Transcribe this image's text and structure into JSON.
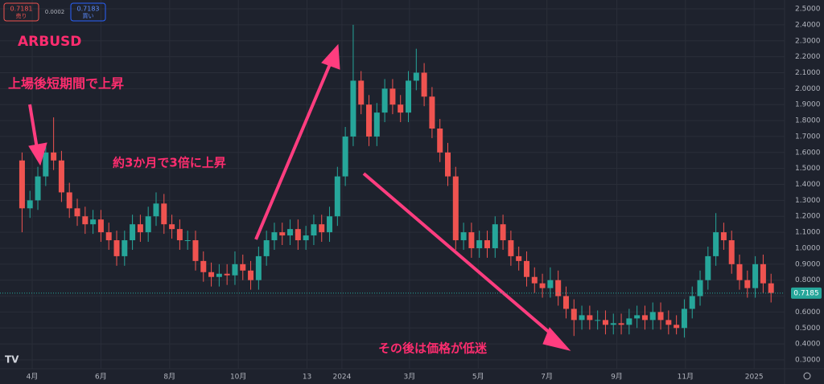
{
  "chart_data": {
    "type": "candlestick",
    "title": "ARBUSD",
    "annotations": [
      "上場後短期間で上昇",
      "約3か月で3倍に上昇",
      "その後は価格が低迷"
    ],
    "quote": {
      "sell": 0.7181,
      "sell_label": "売り",
      "spread": 0.0002,
      "buy": 0.7183,
      "buy_label": "買い"
    },
    "last_price": 0.7185,
    "up_color": "#26a69a",
    "down_color": "#ef5350",
    "x": [
      -9,
      -2,
      5,
      12,
      19,
      26,
      33,
      40,
      47,
      54,
      61,
      68,
      75,
      82,
      89,
      96,
      103,
      110,
      117,
      124,
      131,
      138,
      145,
      152,
      159,
      166,
      173,
      180,
      187,
      194,
      201,
      208,
      215,
      222,
      229,
      236,
      243,
      250,
      257,
      264,
      271,
      278,
      285,
      292,
      299,
      306,
      313,
      320,
      327,
      334,
      341,
      348,
      355,
      362,
      369,
      376,
      383,
      390,
      397,
      404,
      411,
      418,
      425,
      432,
      439,
      446,
      453,
      460,
      467,
      474,
      481,
      488,
      495,
      502,
      509,
      516,
      523,
      530,
      537,
      544,
      551,
      558,
      565,
      572,
      579,
      586,
      593,
      600,
      607,
      614,
      621,
      628,
      635,
      642,
      649,
      656
    ],
    "open": [
      1.55,
      1.25,
      1.3,
      1.45,
      1.6,
      1.55,
      1.35,
      1.25,
      1.2,
      1.15,
      1.18,
      1.1,
      1.05,
      0.95,
      1.05,
      1.15,
      1.1,
      1.2,
      1.28,
      1.15,
      1.12,
      1.05,
      1.05,
      0.92,
      0.85,
      0.82,
      0.84,
      0.83,
      0.9,
      0.86,
      0.8,
      0.95,
      1.05,
      1.1,
      1.08,
      1.12,
      1.05,
      1.08,
      1.15,
      1.1,
      1.2,
      1.45,
      1.7,
      2.05,
      1.9,
      1.7,
      1.85,
      2.0,
      1.9,
      1.85,
      2.05,
      2.1,
      1.95,
      1.75,
      1.6,
      1.45,
      1.05,
      1.1,
      1.0,
      1.05,
      1.0,
      1.15,
      1.05,
      0.95,
      0.92,
      0.82,
      0.78,
      0.75,
      0.8,
      0.7,
      0.62,
      0.55,
      0.58,
      0.55,
      0.55,
      0.52,
      0.53,
      0.52,
      0.56,
      0.58,
      0.55,
      0.6,
      0.55,
      0.52,
      0.5,
      0.62,
      0.7,
      0.8,
      0.95,
      1.1,
      1.05,
      0.9,
      0.8,
      0.75,
      0.9,
      0.78
    ],
    "high": [
      1.6,
      1.36,
      1.51,
      1.66,
      1.82,
      1.61,
      1.41,
      1.31,
      1.26,
      1.24,
      1.24,
      1.16,
      1.11,
      1.11,
      1.21,
      1.21,
      1.26,
      1.35,
      1.34,
      1.21,
      1.18,
      1.11,
      1.11,
      0.98,
      0.91,
      0.9,
      0.9,
      0.98,
      0.96,
      0.92,
      1.01,
      1.11,
      1.16,
      1.16,
      1.18,
      1.18,
      1.14,
      1.21,
      1.21,
      1.26,
      1.51,
      1.76,
      2.4,
      2.11,
      1.96,
      1.91,
      2.06,
      2.06,
      1.96,
      2.11,
      2.25,
      2.16,
      2.01,
      1.81,
      1.66,
      1.51,
      1.16,
      1.16,
      1.11,
      1.11,
      1.2,
      1.21,
      1.11,
      1.01,
      0.98,
      0.88,
      0.84,
      0.88,
      0.86,
      0.76,
      0.68,
      0.64,
      0.64,
      0.61,
      0.61,
      0.59,
      0.59,
      0.62,
      0.64,
      0.64,
      0.66,
      0.66,
      0.61,
      0.58,
      0.68,
      0.76,
      0.86,
      1.01,
      1.22,
      1.16,
      1.11,
      0.96,
      0.86,
      0.95,
      0.96,
      0.84
    ],
    "low": [
      1.1,
      1.19,
      1.24,
      1.39,
      1.49,
      1.29,
      1.19,
      1.14,
      1.09,
      1.09,
      1.04,
      0.99,
      0.89,
      0.89,
      0.99,
      1.04,
      1.04,
      1.14,
      1.09,
      1.06,
      0.99,
      0.99,
      0.86,
      0.79,
      0.76,
      0.76,
      0.77,
      0.77,
      0.8,
      0.74,
      0.74,
      0.89,
      0.99,
      1.02,
      1.02,
      0.99,
      0.99,
      1.02,
      1.04,
      1.04,
      1.14,
      1.39,
      1.64,
      1.84,
      1.64,
      1.64,
      1.79,
      1.84,
      1.79,
      1.79,
      1.99,
      1.89,
      1.69,
      1.54,
      1.39,
      0.99,
      0.99,
      0.94,
      0.94,
      0.94,
      0.94,
      0.99,
      0.89,
      0.86,
      0.76,
      0.72,
      0.69,
      0.69,
      0.64,
      0.56,
      0.45,
      0.49,
      0.49,
      0.49,
      0.46,
      0.46,
      0.46,
      0.46,
      0.5,
      0.49,
      0.49,
      0.49,
      0.46,
      0.46,
      0.44,
      0.56,
      0.64,
      0.74,
      0.89,
      0.99,
      0.84,
      0.74,
      0.69,
      0.69,
      0.72,
      0.66
    ],
    "close": [
      1.25,
      1.3,
      1.45,
      1.6,
      1.55,
      1.35,
      1.25,
      1.2,
      1.15,
      1.18,
      1.1,
      1.05,
      0.95,
      1.05,
      1.15,
      1.1,
      1.2,
      1.28,
      1.15,
      1.12,
      1.05,
      1.05,
      0.92,
      0.85,
      0.82,
      0.84,
      0.83,
      0.9,
      0.86,
      0.8,
      0.95,
      1.05,
      1.1,
      1.08,
      1.12,
      1.05,
      1.08,
      1.15,
      1.1,
      1.2,
      1.45,
      1.7,
      2.05,
      1.9,
      1.7,
      1.85,
      2.0,
      1.9,
      1.85,
      2.05,
      2.1,
      1.95,
      1.75,
      1.6,
      1.45,
      1.05,
      1.1,
      1.0,
      1.05,
      1.0,
      1.15,
      1.05,
      0.95,
      0.92,
      0.82,
      0.78,
      0.75,
      0.8,
      0.7,
      0.62,
      0.55,
      0.58,
      0.55,
      0.55,
      0.52,
      0.53,
      0.52,
      0.56,
      0.58,
      0.55,
      0.6,
      0.55,
      0.52,
      0.5,
      0.62,
      0.7,
      0.8,
      0.95,
      1.1,
      1.05,
      0.9,
      0.8,
      0.75,
      0.9,
      0.78,
      0.72
    ],
    "xlim": [
      -28.6,
      668
    ],
    "xticks": [
      {
        "value": 0,
        "label": "4月"
      },
      {
        "value": 61,
        "label": "6月"
      },
      {
        "value": 122,
        "label": "8月"
      },
      {
        "value": 183,
        "label": "10月"
      },
      {
        "value": 244,
        "label": "13"
      },
      {
        "value": 275,
        "label": "2024"
      },
      {
        "value": 335,
        "label": "3月"
      },
      {
        "value": 396,
        "label": "5月"
      },
      {
        "value": 457,
        "label": "7月"
      },
      {
        "value": 519,
        "label": "9月"
      },
      {
        "value": 580,
        "label": "11月"
      },
      {
        "value": 641,
        "label": "2025"
      }
    ],
    "ylim": [
      0.2447,
      2.5555
    ],
    "yticks": [
      {
        "value": 0.3,
        "label": "0.3000"
      },
      {
        "value": 0.4,
        "label": "0.4000"
      },
      {
        "value": 0.5,
        "label": "0.5000"
      },
      {
        "value": 0.6,
        "label": "0.6000"
      },
      {
        "value": 0.7,
        "label": "0.7000"
      },
      {
        "value": 0.8,
        "label": "0.8000"
      },
      {
        "value": 0.9,
        "label": "0.9000"
      },
      {
        "value": 1.0,
        "label": "1.0000"
      },
      {
        "value": 1.1,
        "label": "1.1000"
      },
      {
        "value": 1.2,
        "label": "1.2000"
      },
      {
        "value": 1.3,
        "label": "1.3000"
      },
      {
        "value": 1.4,
        "label": "1.4000"
      },
      {
        "value": 1.5,
        "label": "1.5000"
      },
      {
        "value": 1.6,
        "label": "1.6000"
      },
      {
        "value": 1.7,
        "label": "1.7000"
      },
      {
        "value": 1.8,
        "label": "1.8000"
      },
      {
        "value": 1.9,
        "label": "1.9000"
      },
      {
        "value": 2.0,
        "label": "2.0000"
      },
      {
        "value": 2.1,
        "label": "2.1000"
      },
      {
        "value": 2.2,
        "label": "2.2000"
      },
      {
        "value": 2.3,
        "label": "2.3000"
      },
      {
        "value": 2.4,
        "label": "2.4000"
      },
      {
        "value": 2.5,
        "label": "2.5000"
      }
    ],
    "grid": true
  }
}
